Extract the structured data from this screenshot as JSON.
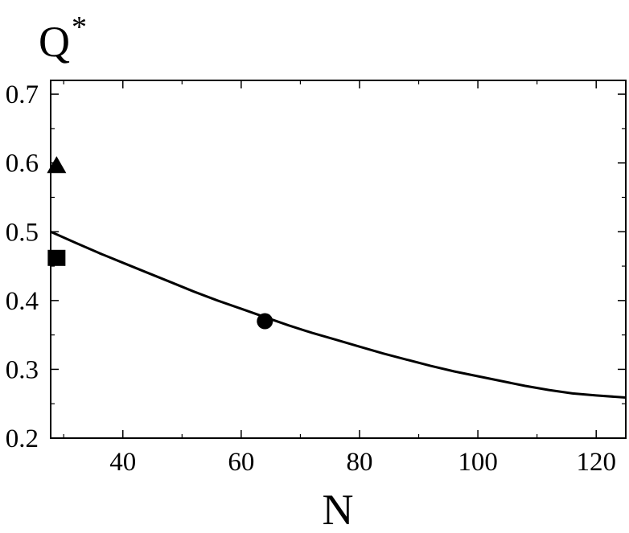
{
  "chart_data": {
    "type": "line",
    "title": "",
    "xlabel": "N",
    "ylabel_base": "Q",
    "ylabel_sup": "*",
    "xlim": [
      27.8,
      125
    ],
    "ylim": [
      0.2,
      0.72
    ],
    "x_ticks": [
      40,
      60,
      80,
      100,
      120
    ],
    "y_ticks": [
      0.2,
      0.3,
      0.4,
      0.5,
      0.6,
      0.7
    ],
    "x_tick_labels": [
      "40",
      "60",
      "80",
      "100",
      "120"
    ],
    "y_tick_labels": [
      "0.2",
      "0.3",
      "0.4",
      "0.5",
      "0.6",
      "0.7"
    ],
    "grid": false,
    "legend": "none",
    "series": [
      {
        "kind": "curve",
        "color": "#000000",
        "x": [
          27.8,
          32,
          36,
          40,
          44,
          48,
          52,
          56,
          60,
          64,
          68,
          72,
          76,
          80,
          84,
          88,
          92,
          96,
          100,
          104,
          108,
          112,
          116,
          120,
          125
        ],
        "y": [
          0.5,
          0.484,
          0.469,
          0.455,
          0.441,
          0.427,
          0.413,
          0.4,
          0.388,
          0.376,
          0.364,
          0.353,
          0.343,
          0.333,
          0.323,
          0.314,
          0.305,
          0.297,
          0.29,
          0.283,
          0.276,
          0.27,
          0.265,
          0.262,
          0.259
        ]
      }
    ],
    "markers": [
      {
        "shape": "triangle",
        "x": 28.8,
        "y": 0.597
      },
      {
        "shape": "square",
        "x": 28.8,
        "y": 0.462
      },
      {
        "shape": "circle",
        "x": 64,
        "y": 0.37
      }
    ]
  }
}
